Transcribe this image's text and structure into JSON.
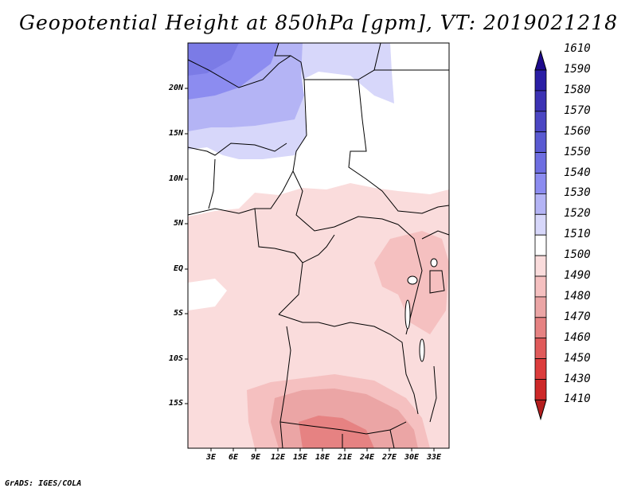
{
  "title": "Geopotential Height at 850hPa [gpm], VT: 2019021218",
  "variable": "Geopotential Height",
  "level": "850hPa",
  "units": "gpm",
  "valid_time": "2019021218",
  "lat_labels": [
    "20N",
    "15N",
    "10N",
    "5N",
    "EQ",
    "5S",
    "10S",
    "15S"
  ],
  "lon_labels": [
    "3E",
    "6E",
    "9E",
    "12E",
    "15E",
    "18E",
    "21E",
    "24E",
    "27E",
    "30E",
    "33E"
  ],
  "colorbar": {
    "levels": [
      "1610",
      "1590",
      "1580",
      "1570",
      "1560",
      "1550",
      "1540",
      "1530",
      "1520",
      "1510",
      "1500",
      "1490",
      "1480",
      "1470",
      "1460",
      "1450",
      "1430",
      "1410"
    ],
    "colors": [
      "#1e0a8c",
      "#2a1ea5",
      "#3c32b4",
      "#4b46c3",
      "#5a5ad2",
      "#6e6ee1",
      "#8c8cf0",
      "#b4b4f5",
      "#d7d7fa",
      "#ffffff",
      "#fadcdc",
      "#f5c0c0",
      "#eba5a5",
      "#e68282",
      "#e05a5a",
      "#dc3c3c",
      "#cd2828",
      "#b41e1e"
    ]
  },
  "credit": "GrADS: IGES/COLA"
}
